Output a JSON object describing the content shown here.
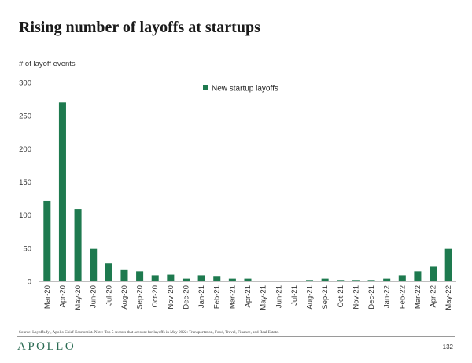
{
  "header": {
    "title": "Rising number of layoffs at startups"
  },
  "chart_data": {
    "type": "bar",
    "title": "Rising number of layoffs at startups",
    "ylabel": "# of layoff events",
    "xlabel": "",
    "ylim": [
      0,
      300
    ],
    "yticks": [
      0,
      50,
      100,
      150,
      200,
      250,
      300
    ],
    "legend": "top-center",
    "grid": false,
    "categories": [
      "Mar-20",
      "Apr-20",
      "May-20",
      "Jun-20",
      "Jul-20",
      "Aug-20",
      "Sep-20",
      "Oct-20",
      "Nov-20",
      "Dec-20",
      "Jan-21",
      "Feb-21",
      "Mar-21",
      "Apr-21",
      "May-21",
      "Jun-21",
      "Jul-21",
      "Aug-21",
      "Sep-21",
      "Oct-21",
      "Nov-21",
      "Dec-21",
      "Jan-22",
      "Feb-22",
      "Mar-22",
      "Apr-22",
      "May-22"
    ],
    "series": [
      {
        "name": "New startup layoffs",
        "color": "#1e7a4f",
        "values": [
          121,
          270,
          109,
          49,
          27,
          18,
          15,
          9,
          10,
          4,
          9,
          8,
          4,
          4,
          1,
          1,
          1,
          2,
          4,
          2,
          2,
          2,
          4,
          9,
          15,
          22,
          49
        ]
      }
    ]
  },
  "footer": {
    "source": "Source: Layoffs.fyi, Apollo Chief Economist. Note: Top 5 sectors that account for layoffs in May 2022: Transportation, Food, Travel, Finance, and Real Estate.",
    "logo": "APOLLO",
    "page_number": "132"
  }
}
